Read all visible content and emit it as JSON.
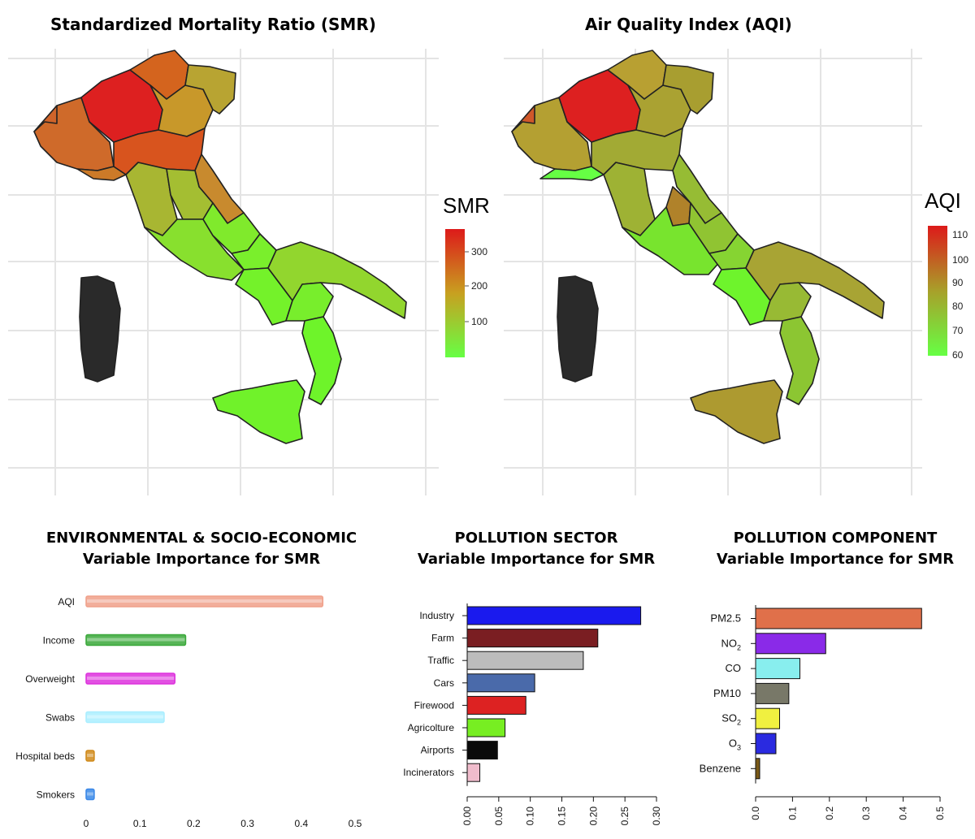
{
  "maps": {
    "smr": {
      "title": "Standardized Mortality Ratio (SMR)",
      "legend_title": "SMR",
      "legend_ticks": [
        "300",
        "200",
        "100"
      ],
      "colors": {
        "high": "#dd1a1a",
        "mid": "#c89a20",
        "low": "#66ff44",
        "no_data": "#2a2a2a"
      }
    },
    "aqi": {
      "title": "Air Quality Index (AQI)",
      "legend_title": "AQI",
      "legend_ticks": [
        "110",
        "100",
        "90",
        "80",
        "70",
        "60"
      ],
      "colors": {
        "high": "#dd1a1a",
        "mid": "#a8a02a",
        "low": "#66ff44",
        "no_data": "#2a2a2a"
      }
    }
  },
  "chart_data": [
    {
      "type": "bar",
      "orientation": "horizontal",
      "title": "ENVIRONMENTAL & SOCIO-ECONOMIC",
      "subtitle": "Variable Importance for SMR",
      "categories": [
        "AQI",
        "Income",
        "Overweight",
        "Swabs",
        "Hospital beds",
        "Smokers"
      ],
      "values": [
        0.44,
        0.185,
        0.165,
        0.145,
        0.015,
        0.015
      ],
      "colors": [
        "#f0a08a",
        "#3aa83a",
        "#dd33dd",
        "#aaeeff",
        "#d08a1a",
        "#3a88e8"
      ],
      "xticks": [
        "0",
        "0.1",
        "0.2",
        "0.3",
        "0.4",
        "0.5"
      ],
      "xlim": [
        0,
        0.5
      ]
    },
    {
      "type": "bar",
      "orientation": "horizontal",
      "title": "POLLUTION SECTOR",
      "subtitle": "Variable Importance for SMR",
      "categories": [
        "Industry",
        "Farm",
        "Traffic",
        "Cars",
        "Firewood",
        "Agricolture",
        "Airports",
        "Incinerators"
      ],
      "values": [
        0.275,
        0.207,
        0.184,
        0.107,
        0.093,
        0.06,
        0.048,
        0.02
      ],
      "colors": [
        "#1a1aee",
        "#7a1e22",
        "#bcbcbc",
        "#4a6aaa",
        "#dd2222",
        "#77ee22",
        "#0a0a0a",
        "#f0bccc"
      ],
      "xticks": [
        "0.00",
        "0.05",
        "0.10",
        "0.15",
        "0.20",
        "0.25",
        "0.30"
      ],
      "xlim": [
        0,
        0.3
      ]
    },
    {
      "type": "bar",
      "orientation": "horizontal",
      "title": "POLLUTION COMPONENT",
      "subtitle": "Variable Importance for SMR",
      "categories": [
        "PM2.5",
        "NO2",
        "CO",
        "PM10",
        "SO2",
        "O3",
        "Benzene"
      ],
      "category_subscripts": [
        "",
        "2",
        "",
        "",
        "2",
        "3",
        ""
      ],
      "category_bases": [
        "PM2.5",
        "NO",
        "CO",
        "PM10",
        "SO",
        "O",
        "Benzene"
      ],
      "values": [
        0.45,
        0.19,
        0.12,
        0.09,
        0.065,
        0.055,
        0.01
      ],
      "colors": [
        "#e0704a",
        "#8a2ae8",
        "#88eeee",
        "#787868",
        "#f0f040",
        "#2a2ae0",
        "#7a5a18"
      ],
      "xticks": [
        "0.0",
        "0.1",
        "0.2",
        "0.3",
        "0.4",
        "0.5"
      ],
      "xlim": [
        0,
        0.5
      ]
    }
  ]
}
